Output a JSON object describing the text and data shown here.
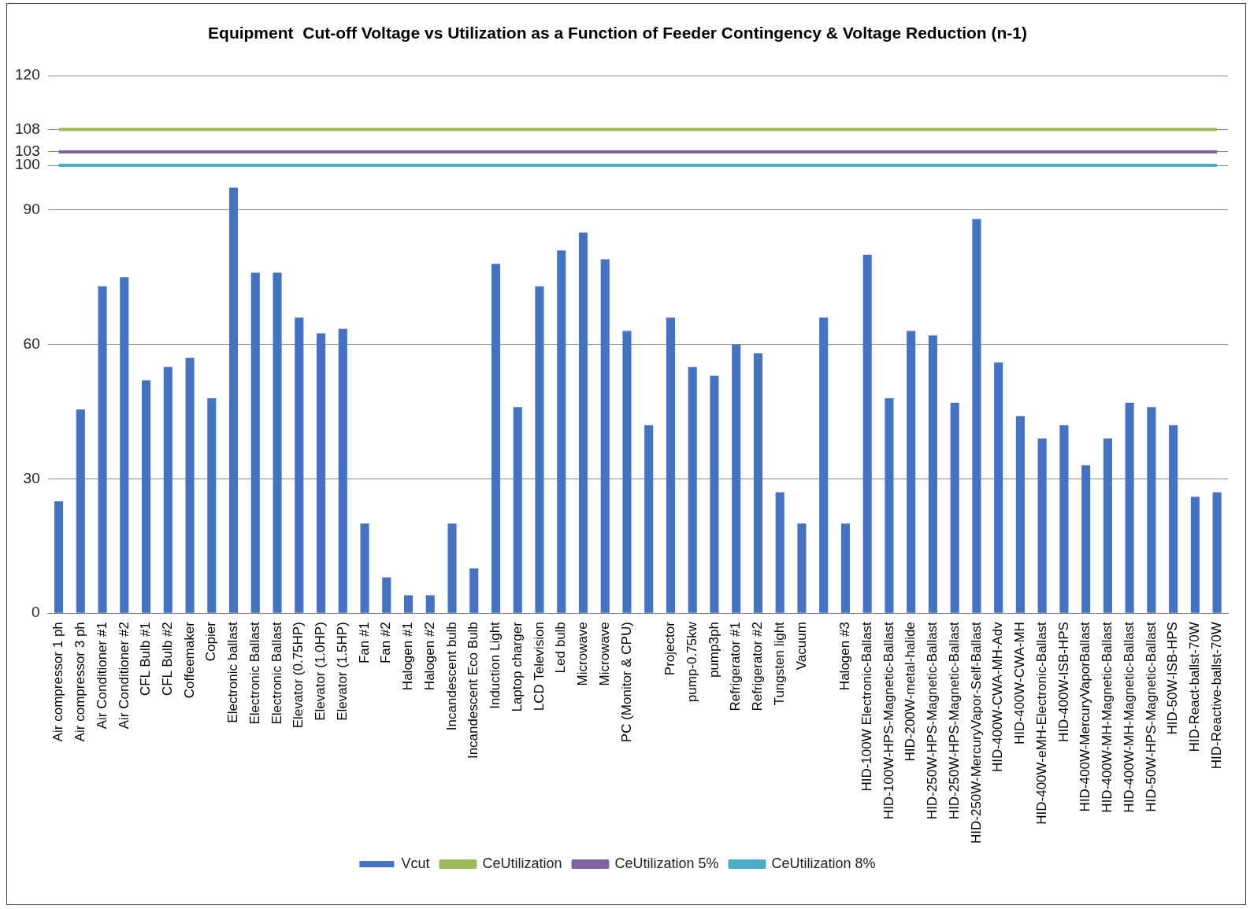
{
  "chart_data": {
    "type": "bar",
    "title": "Equipment  Cut-off Voltage vs Utilization as a Function of Feeder Contingency & Voltage Reduction (n-1)",
    "categories": [
      "Air compressor 1 ph",
      "Air compressor 3 ph",
      "Air Conditioner #1",
      "Air Conditioner #2",
      "CFL Bulb #1",
      "CFL Bulb #2",
      "Coffeemaker",
      "Copier",
      "Electronic ballast",
      "Electronic Ballast",
      "Electronic Ballast",
      "Elevator (0.75HP)",
      "Elevator (1.0HP)",
      "Elevator (1.5HP)",
      "Fan #1",
      "Fan #2",
      "Halogen #1",
      "Halogen #2",
      "Incandescent bulb",
      "Incandescent Eco Bulb",
      "Induction Light",
      "Laptop charger",
      "LCD Television",
      "Led bulb",
      "Microwave",
      "Microwave",
      "PC (Monitor & CPU)",
      null,
      "Projector",
      "pump-0.75kw",
      "pump3ph",
      "Refrigerator #1",
      "Refrigerator #2",
      "Tungsten light",
      "Vacuum",
      null,
      "Halogen #3",
      "HID-100W Electronic-Ballast",
      "HID-100W-HPS-Magnetic-Ballast",
      "HID-200W-metal-halide",
      "HID-250W-HPS-Magnetic-Ballast",
      "HID-250W-HPS-Magnetic-Ballast",
      "HID-250W-MercuryVapor-Self-Ballast",
      "HID-400W-CWA-MH-Adv",
      "HID-400W-CWA-MH",
      "HID-400W-eMH-Electronic-Ballast",
      "HID-400W-ISB-HPS",
      "HID-400W-MercuryVaporBallast",
      "HID-400W-MH-Magnetic-Ballast",
      "HID-400W-MH-Magnetic-Ballast",
      "HID-50W-HPS-Magnetic-Ballast",
      "HID-50W-ISB-HPS",
      "HID-React-ballst-70W",
      "HID-Reactive-ballst-70W"
    ],
    "series": [
      {
        "name": "Vcut",
        "color": "#4472c4",
        "values": [
          25,
          45.5,
          73,
          75,
          52,
          55,
          57,
          48,
          95,
          76,
          76,
          66,
          62.5,
          63.5,
          20,
          8,
          4,
          4,
          20,
          10,
          78,
          46,
          73,
          81,
          85,
          79,
          63,
          42,
          66,
          55,
          53,
          60,
          58,
          27,
          20,
          66,
          20,
          80,
          48,
          63,
          62,
          47,
          88,
          56,
          44,
          39,
          42,
          33,
          39,
          47,
          46,
          42,
          26,
          27
        ]
      },
      {
        "name": "CeUtilization",
        "type": "line",
        "color": "#9bbb59",
        "values": [
          108,
          108,
          108,
          108,
          108,
          108,
          108,
          108,
          108,
          108,
          108,
          108,
          108,
          108,
          108,
          108,
          108,
          108,
          108,
          108,
          108,
          108,
          108,
          108,
          108,
          108,
          108,
          108,
          108,
          108,
          108,
          108,
          108,
          108,
          108,
          108,
          108,
          108,
          108,
          108,
          108,
          108,
          108,
          108,
          108,
          108,
          108,
          108,
          108,
          108,
          108,
          108,
          108,
          108
        ]
      },
      {
        "name": "CeUtilization 5%",
        "type": "line",
        "color": "#8064a2",
        "values": [
          103,
          103,
          103,
          103,
          103,
          103,
          103,
          103,
          103,
          103,
          103,
          103,
          103,
          103,
          103,
          103,
          103,
          103,
          103,
          103,
          103,
          103,
          103,
          103,
          103,
          103,
          103,
          103,
          103,
          103,
          103,
          103,
          103,
          103,
          103,
          103,
          103,
          103,
          103,
          103,
          103,
          103,
          103,
          103,
          103,
          103,
          103,
          103,
          103,
          103,
          103,
          103,
          103,
          103
        ]
      },
      {
        "name": "CeUtilization 8%",
        "type": "line",
        "color": "#4bacc6",
        "values": [
          100,
          100,
          100,
          100,
          100,
          100,
          100,
          100,
          100,
          100,
          100,
          100,
          100,
          100,
          100,
          100,
          100,
          100,
          100,
          100,
          100,
          100,
          100,
          100,
          100,
          100,
          100,
          100,
          100,
          100,
          100,
          100,
          100,
          100,
          100,
          100,
          100,
          100,
          100,
          100,
          100,
          100,
          100,
          100,
          100,
          100,
          100,
          100,
          100,
          100,
          100,
          100,
          100,
          100
        ]
      }
    ],
    "ylim": [
      0,
      120
    ],
    "yticks": [
      0,
      30,
      60,
      90,
      100,
      103,
      108,
      120
    ],
    "grid": "y",
    "legend": "bottom",
    "marker": "none"
  }
}
